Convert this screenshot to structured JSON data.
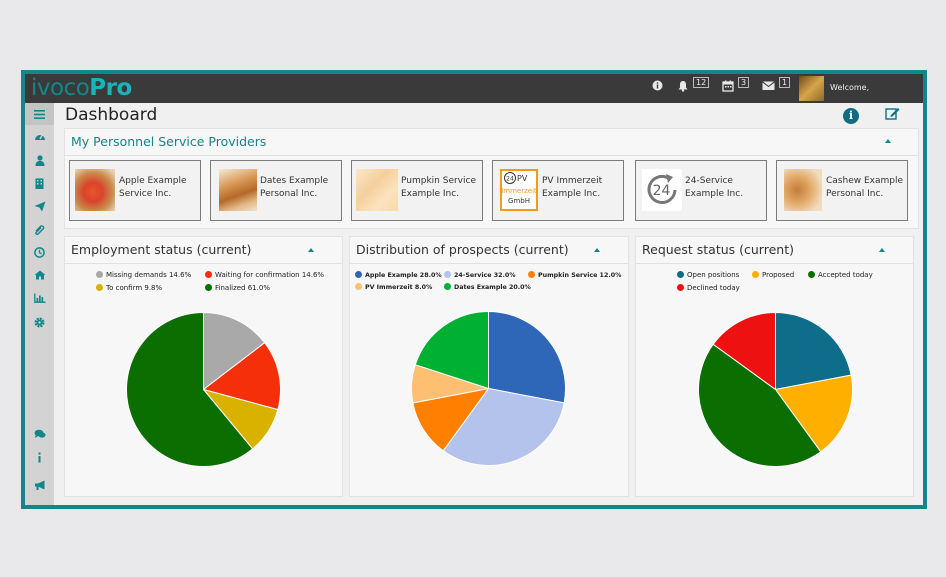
{
  "app": {
    "logo_part1": "ivoco",
    "logo_part2": "Pro",
    "welcome": "Welcome,"
  },
  "topbar": {
    "notifications_count": "12",
    "calendar_count": "3",
    "messages_count": "1"
  },
  "page": {
    "title": "Dashboard"
  },
  "providers_panel": {
    "title": "My Personnel Service Providers",
    "providers": [
      {
        "name": "Apple Example Service Inc."
      },
      {
        "name": "Dates Example Personal Inc."
      },
      {
        "name": "Pumpkin Service Example Inc."
      },
      {
        "name": "PV Immerzeit Example Inc.",
        "logo_text": [
          "PV",
          "Immerzeit",
          "GmbH"
        ],
        "logo_badge": "24"
      },
      {
        "name": "24-Service Example Inc.",
        "logo_badge": "24"
      },
      {
        "name": "Cashew Example Personal Inc."
      }
    ]
  },
  "chart_data": [
    {
      "type": "pie",
      "title": "Employment status (current)",
      "series": [
        {
          "name": "Missing demands 14.6%",
          "value": 14.6,
          "color": "#a9a9a9"
        },
        {
          "name": "Waiting for confirmation 14.6%",
          "value": 14.6,
          "color": "#f52f0a"
        },
        {
          "name": "To confirm 9.8%",
          "value": 9.8,
          "color": "#d9b200"
        },
        {
          "name": "Finalized 61.0%",
          "value": 61.0,
          "color": "#0b6e00"
        }
      ]
    },
    {
      "type": "pie",
      "title": "Distribution of prospects (current)",
      "series": [
        {
          "name": "Apple Example 28.0%",
          "value": 28.0,
          "color": "#2e66b8"
        },
        {
          "name": "24-Service 32.0%",
          "value": 32.0,
          "color": "#b3c3ec"
        },
        {
          "name": "Pumpkin Service 12.0%",
          "value": 12.0,
          "color": "#ff8000"
        },
        {
          "name": "PV Immerzeit 8.0%",
          "value": 8.0,
          "color": "#ffbf73"
        },
        {
          "name": "Dates Example 20.0%",
          "value": 20.0,
          "color": "#00b032"
        }
      ]
    },
    {
      "type": "pie",
      "title": "Request status (current)",
      "series": [
        {
          "name": "Open positions",
          "value": 22,
          "color": "#0e6d8a"
        },
        {
          "name": "Proposed",
          "value": 18,
          "color": "#ffaf00"
        },
        {
          "name": "Accepted today",
          "value": 45,
          "color": "#0b6e00"
        },
        {
          "name": "Declined today",
          "value": 15,
          "color": "#ee1111"
        }
      ]
    }
  ]
}
